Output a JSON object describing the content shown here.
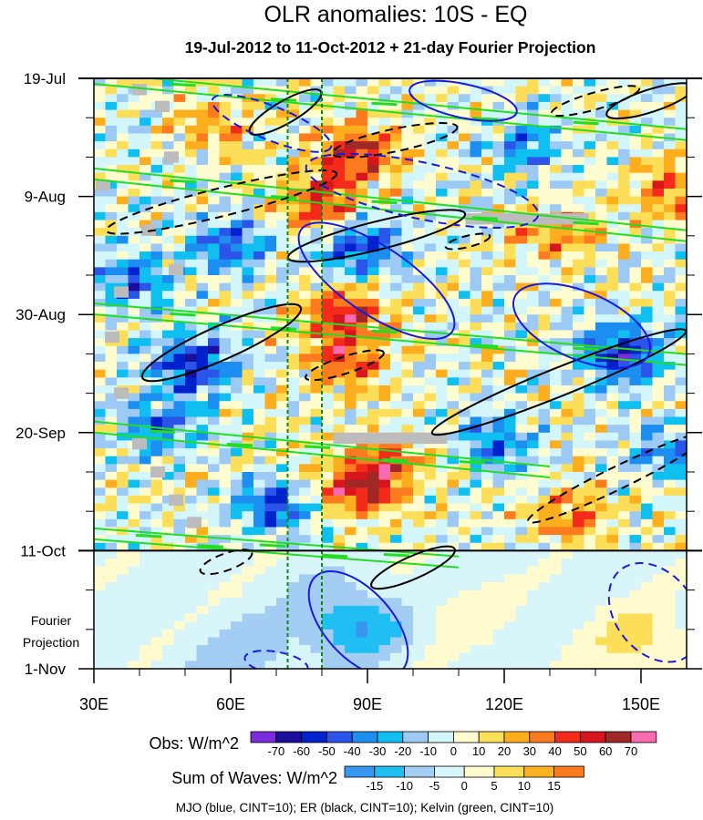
{
  "chart_data": {
    "type": "heatmap",
    "title": "OLR anomalies: 10S - EQ",
    "subtitle": "19-Jul-2012 to 11-Oct-2012 + 21-day Fourier Projection",
    "x_ticks": [
      {
        "label": "30E",
        "value": 30
      },
      {
        "label": "60E",
        "value": 60
      },
      {
        "label": "90E",
        "value": 90
      },
      {
        "label": "120E",
        "value": 120
      },
      {
        "label": "150E",
        "value": 150
      }
    ],
    "xlim": [
      30,
      160
    ],
    "y_ticks": [
      {
        "label": "19-Jul",
        "day": 0
      },
      {
        "label": "9-Aug",
        "day": 21
      },
      {
        "label": "30-Aug",
        "day": 42
      },
      {
        "label": "20-Sep",
        "day": 63
      },
      {
        "label": "11-Oct",
        "day": 84
      },
      {
        "label": "1-Nov",
        "day": 105
      }
    ],
    "ylim_days": [
      0,
      105
    ],
    "projection_label_line1": "Fourier",
    "projection_label_line2": "Projection",
    "reference_lines_lon": [
      72.5,
      80
    ],
    "obs_colorbar": {
      "title": "Obs: W/m^2",
      "labels": [
        "-70",
        "-60",
        "-50",
        "-40",
        "-30",
        "-20",
        "-10",
        "0",
        "10",
        "20",
        "30",
        "40",
        "50",
        "60",
        "70"
      ],
      "colors": [
        "#7b2cdc",
        "#1a0e9c",
        "#0022cc",
        "#2b55e8",
        "#1c8ef0",
        "#0fbfef",
        "#9dcaf4",
        "#d2f6f9",
        "#fffcd0",
        "#fdde58",
        "#fcae1f",
        "#fb7b1e",
        "#f42a1b",
        "#d7151d",
        "#a22727",
        "#f86bb0"
      ]
    },
    "wave_colorbar": {
      "title": "Sum of Waves: W/m^2",
      "labels": [
        "-15",
        "-10",
        "-5",
        "0",
        "5",
        "10",
        "15"
      ],
      "colors": [
        "#3897ee",
        "#1fbef3",
        "#a3cdf3",
        "#d8f6f9",
        "#fffbcf",
        "#fdde59",
        "#fcb221",
        "#fb7b1f"
      ]
    },
    "wave_note": "MJO (blue, CINT=10); ER (black, CINT=10); Kelvin (green, CINT=10)",
    "wave_colors": {
      "mjo": "#1a1ae0",
      "er": "#000000",
      "kelvin": "#22dd22"
    },
    "obs_features": [
      {
        "sign": "positive",
        "lon": 88,
        "day": 13,
        "amp": 55
      },
      {
        "sign": "positive",
        "lon": 80,
        "day": 22,
        "amp": 48
      },
      {
        "sign": "positive",
        "lon": 85,
        "day": 42,
        "amp": 55
      },
      {
        "sign": "positive",
        "lon": 85,
        "day": 51,
        "amp": 42
      },
      {
        "sign": "positive",
        "lon": 88,
        "day": 73,
        "amp": 58
      },
      {
        "sign": "positive",
        "lon": 95,
        "day": 68,
        "amp": 35
      },
      {
        "sign": "positive",
        "lon": 132,
        "day": 28,
        "amp": 32
      },
      {
        "sign": "positive",
        "lon": 156,
        "day": 20,
        "amp": 38
      },
      {
        "sign": "positive",
        "lon": 135,
        "day": 78,
        "amp": 35
      },
      {
        "sign": "positive",
        "lon": 56,
        "day": 8,
        "amp": 25
      },
      {
        "sign": "negative",
        "lon": 52,
        "day": 51,
        "amp": 55
      },
      {
        "sign": "negative",
        "lon": 88,
        "day": 30,
        "amp": 50
      },
      {
        "sign": "negative",
        "lon": 60,
        "day": 30,
        "amp": 40
      },
      {
        "sign": "negative",
        "lon": 146,
        "day": 49,
        "amp": 62
      },
      {
        "sign": "negative",
        "lon": 70,
        "day": 76,
        "amp": 45
      },
      {
        "sign": "negative",
        "lon": 38,
        "day": 36,
        "amp": 40
      },
      {
        "sign": "negative",
        "lon": 118,
        "day": 65,
        "amp": 38
      },
      {
        "sign": "negative",
        "lon": 45,
        "day": 62,
        "amp": 40
      },
      {
        "sign": "negative",
        "lon": 125,
        "day": 12,
        "amp": 30
      },
      {
        "sign": "negative",
        "lon": 158,
        "day": 66,
        "amp": 35
      }
    ],
    "projection_features": [
      {
        "sign": "negative",
        "lon": 87,
        "day": 97,
        "amp": 14
      },
      {
        "sign": "negative",
        "lon": 64,
        "day": 103,
        "amp": 6
      },
      {
        "sign": "positive",
        "lon": 150,
        "day": 100,
        "amp": 9
      },
      {
        "sign": "positive",
        "lon": 110,
        "day": 95,
        "amp": 5
      }
    ],
    "mjo_contours": [
      {
        "lon": 92,
        "day": 36,
        "rx_deg": 20,
        "ry_days": 6,
        "angle": 34,
        "style": "solid"
      },
      {
        "lon": 137,
        "day": 44,
        "rx_deg": 16,
        "ry_days": 6,
        "angle": 23,
        "style": "solid"
      },
      {
        "lon": 88,
        "day": 97,
        "rx_deg": 14,
        "ry_days": 6,
        "angle": 48,
        "style": "solid"
      },
      {
        "lon": 111,
        "day": 4,
        "rx_deg": 12,
        "ry_days": 3,
        "angle": 12,
        "style": "solid"
      },
      {
        "lon": 102,
        "day": 20,
        "rx_deg": 26,
        "ry_days": 5,
        "angle": 12,
        "style": "dashed"
      },
      {
        "lon": 69,
        "day": 8,
        "rx_deg": 14,
        "ry_days": 3,
        "angle": 22,
        "style": "dashed"
      },
      {
        "lon": 153,
        "day": 95,
        "rx_deg": 12,
        "ry_days": 7,
        "angle": 52,
        "style": "dashed"
      },
      {
        "lon": 70,
        "day": 104,
        "rx_deg": 7,
        "ry_days": 2,
        "angle": 10,
        "style": "dashed"
      }
    ],
    "er_contours": [
      {
        "lon": 92,
        "day": 28,
        "rx_deg": 20,
        "ry_days": 2.5,
        "angle": -14,
        "style": "solid"
      },
      {
        "lon": 58,
        "day": 47,
        "rx_deg": 19,
        "ry_days": 3,
        "angle": -24,
        "style": "solid"
      },
      {
        "lon": 132,
        "day": 54,
        "rx_deg": 30,
        "ry_days": 2.5,
        "angle": -22,
        "style": "solid"
      },
      {
        "lon": 152,
        "day": 4,
        "rx_deg": 10,
        "ry_days": 2,
        "angle": -18,
        "style": "solid"
      },
      {
        "lon": 100,
        "day": 87,
        "rx_deg": 10,
        "ry_days": 2,
        "angle": -24,
        "style": "solid"
      },
      {
        "lon": 72,
        "day": 6,
        "rx_deg": 9,
        "ry_days": 2,
        "angle": -30,
        "style": "solid"
      },
      {
        "lon": 58,
        "day": 22,
        "rx_deg": 26,
        "ry_days": 2.5,
        "angle": -14,
        "style": "dashed"
      },
      {
        "lon": 96,
        "day": 11,
        "rx_deg": 14,
        "ry_days": 2,
        "angle": -12,
        "style": "dashed"
      },
      {
        "lon": 145,
        "day": 71,
        "rx_deg": 22,
        "ry_days": 2,
        "angle": -26,
        "style": "dashed"
      },
      {
        "lon": 85,
        "day": 51,
        "rx_deg": 9,
        "ry_days": 1.5,
        "angle": -18,
        "style": "dashed"
      },
      {
        "lon": 140,
        "day": 4,
        "rx_deg": 10,
        "ry_days": 1.5,
        "angle": -16,
        "style": "dashed"
      },
      {
        "lon": 112,
        "day": 29,
        "rx_deg": 5,
        "ry_days": 1,
        "angle": -14,
        "style": "dashed"
      },
      {
        "lon": 59,
        "day": 86,
        "rx_deg": 6,
        "ry_days": 1.5,
        "angle": -20,
        "style": "dashed"
      }
    ],
    "kelvin_bands": [
      {
        "lon_start": 30,
        "day_start": 0,
        "lon_end": 160,
        "day_end": 10
      },
      {
        "lon_start": 30,
        "day_start": 17,
        "lon_end": 160,
        "day_end": 28
      },
      {
        "lon_start": 30,
        "day_start": 41,
        "lon_end": 160,
        "day_end": 50
      },
      {
        "lon_start": 30,
        "day_start": 62,
        "lon_end": 130,
        "day_end": 70
      },
      {
        "lon_start": 30,
        "day_start": 81,
        "lon_end": 110,
        "day_end": 86
      }
    ],
    "missing_cells": [
      {
        "lon": 40,
        "day": 2
      },
      {
        "lon": 45,
        "day": 5
      },
      {
        "lon": 47,
        "day": 14
      },
      {
        "lon": 42,
        "day": 27
      },
      {
        "lon": 48,
        "day": 34
      },
      {
        "lon": 36,
        "day": 38
      },
      {
        "lon": 34,
        "day": 46
      },
      {
        "lon": 36,
        "day": 56
      },
      {
        "lon": 40,
        "day": 65
      },
      {
        "lon": 44,
        "day": 70
      },
      {
        "lon": 48,
        "day": 75
      },
      {
        "lon": 52,
        "day": 79
      },
      {
        "lon": 32,
        "day": 19
      },
      {
        "lon": 95,
        "day": 64,
        "w": 25
      },
      {
        "lon": 125,
        "day": 25,
        "w": 27
      }
    ]
  }
}
